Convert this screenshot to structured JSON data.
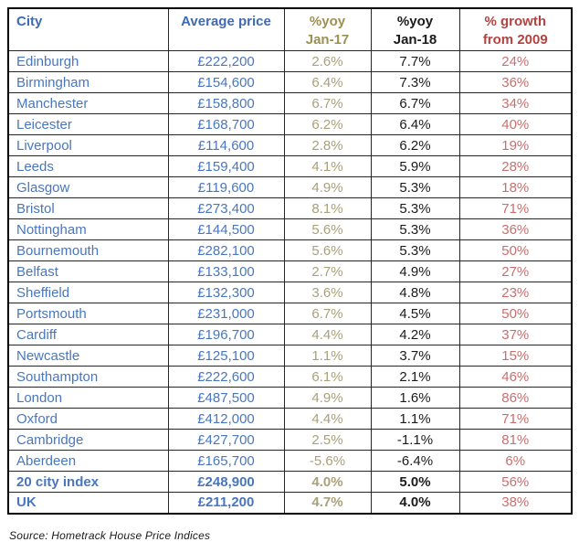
{
  "chart_data": {
    "type": "table",
    "source": "Source: Hometrack House Price Indices",
    "colors": {
      "header_blue": "#3f6ab5",
      "header_olive": "#9c9150",
      "header_black": "#1b1b1b",
      "header_red": "#b24341",
      "cell_blue": "#4877c0",
      "cell_olive": "#a8a179",
      "cell_black": "#1b1b1b",
      "cell_rose": "#c96f6f",
      "border": "#262626"
    },
    "columns": [
      {
        "key": "city",
        "label_lines": [
          "City"
        ],
        "align": "left",
        "header_color": "#3f6ab5",
        "cell_color": "#4877c0"
      },
      {
        "key": "avg_price",
        "label_lines": [
          "Average price"
        ],
        "align": "center",
        "header_color": "#3f6ab5",
        "cell_color": "#4877c0"
      },
      {
        "key": "yoy_jan17",
        "label_lines": [
          "%yoy",
          "Jan-17"
        ],
        "align": "center",
        "header_color": "#9c9150",
        "cell_color": "#a8a179"
      },
      {
        "key": "yoy_jan18",
        "label_lines": [
          "%yoy",
          "Jan-18"
        ],
        "align": "center",
        "header_color": "#1b1b1b",
        "cell_color": "#1b1b1b"
      },
      {
        "key": "growth_2009",
        "label_lines": [
          "% growth",
          "from 2009"
        ],
        "align": "center",
        "header_color": "#b24341",
        "cell_color": "#c96f6f",
        "summary_not_bold": true
      }
    ],
    "rows": [
      {
        "city": "Edinburgh",
        "avg_price": "£222,200",
        "yoy_jan17": "2.6%",
        "yoy_jan18": "7.7%",
        "growth_2009": "24%",
        "is_summary": false
      },
      {
        "city": "Birmingham",
        "avg_price": "£154,600",
        "yoy_jan17": "6.4%",
        "yoy_jan18": "7.3%",
        "growth_2009": "36%",
        "is_summary": false
      },
      {
        "city": "Manchester",
        "avg_price": "£158,800",
        "yoy_jan17": "6.7%",
        "yoy_jan18": "6.7%",
        "growth_2009": "34%",
        "is_summary": false
      },
      {
        "city": "Leicester",
        "avg_price": "£168,700",
        "yoy_jan17": "6.2%",
        "yoy_jan18": "6.4%",
        "growth_2009": "40%",
        "is_summary": false
      },
      {
        "city": "Liverpool",
        "avg_price": "£114,600",
        "yoy_jan17": "2.8%",
        "yoy_jan18": "6.2%",
        "growth_2009": "19%",
        "is_summary": false
      },
      {
        "city": "Leeds",
        "avg_price": "£159,400",
        "yoy_jan17": "4.1%",
        "yoy_jan18": "5.9%",
        "growth_2009": "28%",
        "is_summary": false
      },
      {
        "city": "Glasgow",
        "avg_price": "£119,600",
        "yoy_jan17": "4.9%",
        "yoy_jan18": "5.3%",
        "growth_2009": "18%",
        "is_summary": false
      },
      {
        "city": "Bristol",
        "avg_price": "£273,400",
        "yoy_jan17": "8.1%",
        "yoy_jan18": "5.3%",
        "growth_2009": "71%",
        "is_summary": false
      },
      {
        "city": "Nottingham",
        "avg_price": "£144,500",
        "yoy_jan17": "5.6%",
        "yoy_jan18": "5.3%",
        "growth_2009": "36%",
        "is_summary": false
      },
      {
        "city": "Bournemouth",
        "avg_price": "£282,100",
        "yoy_jan17": "5.6%",
        "yoy_jan18": "5.3%",
        "growth_2009": "50%",
        "is_summary": false
      },
      {
        "city": "Belfast",
        "avg_price": "£133,100",
        "yoy_jan17": "2.7%",
        "yoy_jan18": "4.9%",
        "growth_2009": "27%",
        "is_summary": false
      },
      {
        "city": "Sheffield",
        "avg_price": "£132,300",
        "yoy_jan17": "3.6%",
        "yoy_jan18": "4.8%",
        "growth_2009": "23%",
        "is_summary": false
      },
      {
        "city": "Portsmouth",
        "avg_price": "£231,000",
        "yoy_jan17": "6.7%",
        "yoy_jan18": "4.5%",
        "growth_2009": "50%",
        "is_summary": false
      },
      {
        "city": "Cardiff",
        "avg_price": "£196,700",
        "yoy_jan17": "4.4%",
        "yoy_jan18": "4.2%",
        "growth_2009": "37%",
        "is_summary": false
      },
      {
        "city": "Newcastle",
        "avg_price": "£125,100",
        "yoy_jan17": "1.1%",
        "yoy_jan18": "3.7%",
        "growth_2009": "15%",
        "is_summary": false
      },
      {
        "city": "Southampton",
        "avg_price": "£222,600",
        "yoy_jan17": "6.1%",
        "yoy_jan18": "2.1%",
        "growth_2009": "46%",
        "is_summary": false
      },
      {
        "city": "London",
        "avg_price": "£487,500",
        "yoy_jan17": "4.9%",
        "yoy_jan18": "1.6%",
        "growth_2009": "86%",
        "is_summary": false
      },
      {
        "city": "Oxford",
        "avg_price": "£412,000",
        "yoy_jan17": "4.4%",
        "yoy_jan18": "1.1%",
        "growth_2009": "71%",
        "is_summary": false
      },
      {
        "city": "Cambridge",
        "avg_price": "£427,700",
        "yoy_jan17": "2.5%",
        "yoy_jan18": "-1.1%",
        "growth_2009": "81%",
        "is_summary": false
      },
      {
        "city": "Aberdeen",
        "avg_price": "£165,700",
        "yoy_jan17": "-5.6%",
        "yoy_jan18": "-6.4%",
        "growth_2009": "6%",
        "is_summary": false
      },
      {
        "city": "20 city index",
        "avg_price": "£248,900",
        "yoy_jan17": "4.0%",
        "yoy_jan18": "5.0%",
        "growth_2009": "56%",
        "is_summary": true
      },
      {
        "city": "UK",
        "avg_price": "£211,200",
        "yoy_jan17": "4.7%",
        "yoy_jan18": "4.0%",
        "growth_2009": "38%",
        "is_summary": true
      }
    ]
  }
}
